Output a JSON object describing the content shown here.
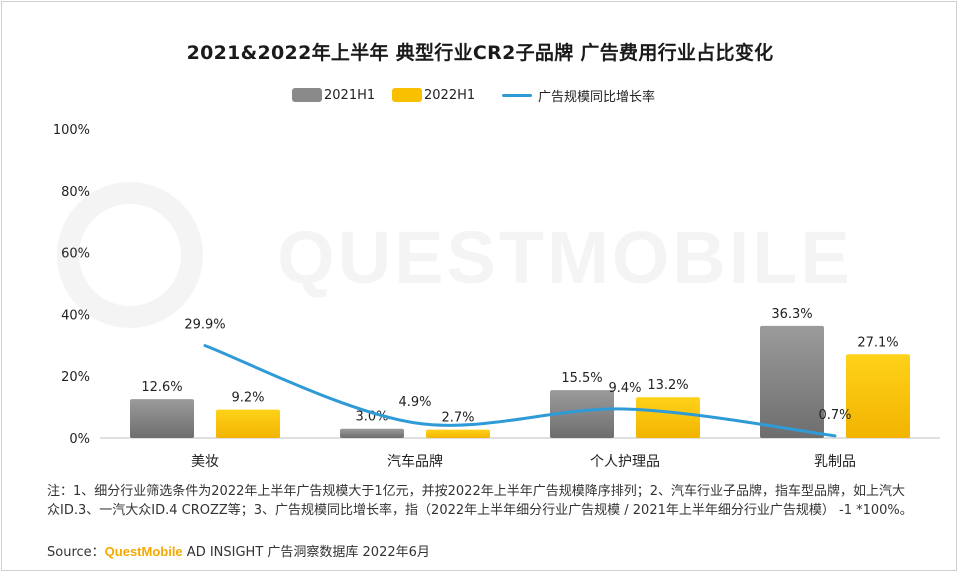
{
  "title": "2021&2022年上半年 典型行业CR2子品牌 广告费用行业占比变化",
  "legend": {
    "series1": "2021H1",
    "series2": "2022H1",
    "line": "广告规模同比增长率"
  },
  "watermark": "QUESTMOBILE",
  "colors": {
    "series1": "#8a8a8a",
    "series2": "#f8c000",
    "line": "#2f9bd6"
  },
  "chart_data": {
    "type": "bar",
    "categories": [
      "美妆",
      "汽车品牌",
      "个人护理品",
      "乳制品"
    ],
    "series": [
      {
        "name": "2021H1",
        "values": [
          12.6,
          3.0,
          15.5,
          36.3
        ],
        "labels": [
          "12.6%",
          "3.0%",
          "15.5%",
          "36.3%"
        ]
      },
      {
        "name": "2022H1",
        "values": [
          9.2,
          2.7,
          13.2,
          27.1
        ],
        "labels": [
          "9.2%",
          "2.7%",
          "13.2%",
          "27.1%"
        ]
      }
    ],
    "line_series": {
      "name": "广告规模同比增长率",
      "values": [
        29.9,
        4.9,
        9.4,
        0.7
      ],
      "labels": [
        "29.9%",
        "4.9%",
        "9.4%",
        "0.7%"
      ]
    },
    "y_ticks": [
      "0%",
      "20%",
      "40%",
      "60%",
      "80%",
      "100%"
    ],
    "ylim": [
      0,
      100
    ],
    "grid": false,
    "legend_position": "top"
  },
  "note": "注：1、细分行业筛选条件为2022年上半年广告规模大于1亿元，并按2022年上半年广告规模降序排列；2、汽车行业子品牌，指车型品牌，如上汽大众ID.3、一汽大众ID.4 CROZZ等；3、广告规模同比增长率，指（2022年上半年细分行业广告规模 / 2021年上半年细分行业广告规模） -1 *100%。",
  "source": {
    "label": "Source：",
    "brand": "QuestMobile",
    "rest": " AD INSIGHT 广告洞察数据库 2022年6月"
  }
}
